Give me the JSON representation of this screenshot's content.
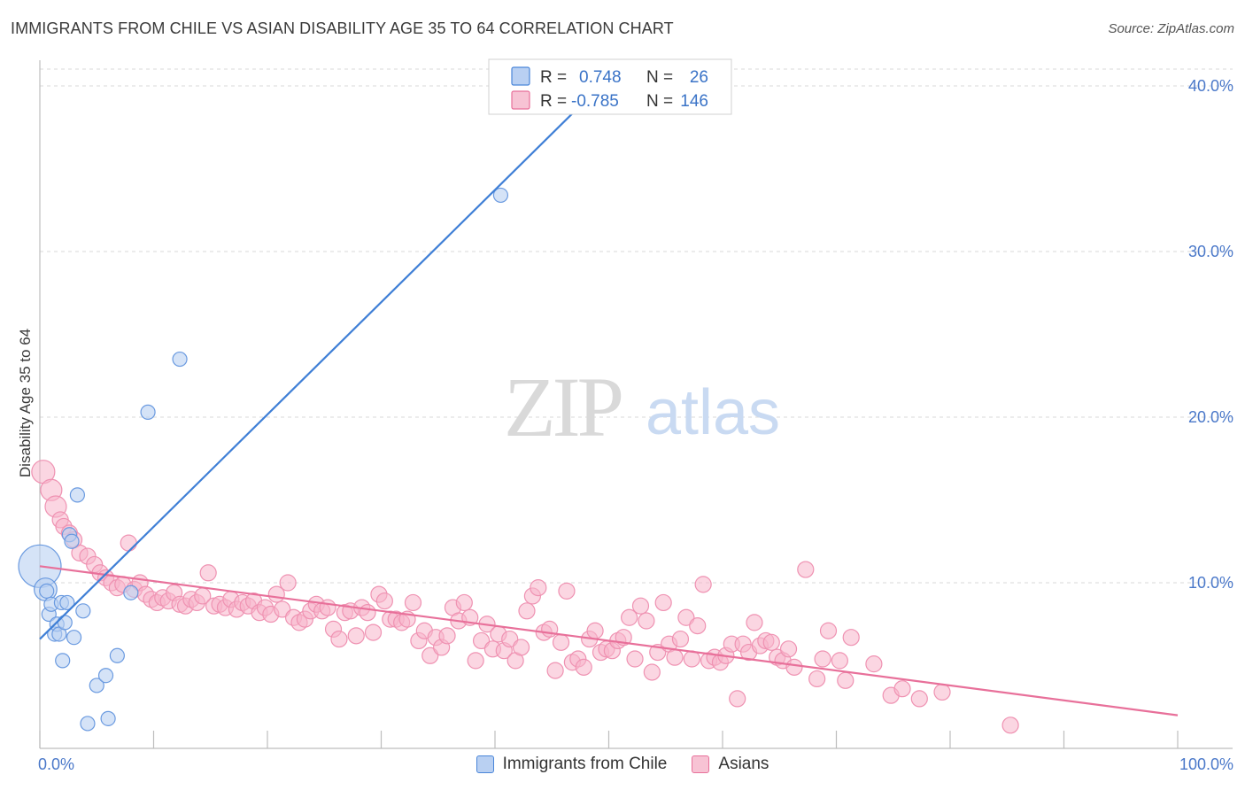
{
  "header": {
    "title": "IMMIGRANTS FROM CHILE VS ASIAN DISABILITY AGE 35 TO 64 CORRELATION CHART",
    "source": "Source: ZipAtlas.com"
  },
  "watermark": {
    "zip": "ZIP",
    "atlas": "atlas"
  },
  "colors": {
    "blue": "#4a86d9",
    "blue_fill": "#b9d0f2",
    "pink": "#e8709a",
    "pink_fill": "#f7c3d4",
    "tick": "#4a78c9"
  },
  "legend": {
    "rows": [
      {
        "r_label": "R =",
        "r_value": "0.748",
        "n_label": "N =",
        "n_value": "26"
      },
      {
        "r_label": "R =",
        "r_value": "-0.785",
        "n_label": "N =",
        "n_value": "146"
      }
    ]
  },
  "bottom_legend": {
    "blue_label": "Immigrants from Chile",
    "pink_label": "Asians"
  },
  "chart_data": {
    "type": "scatter",
    "title": "IMMIGRANTS FROM CHILE VS ASIAN DISABILITY AGE 35 TO 64 CORRELATION CHART",
    "ylabel": "Disability Age 35 to 64",
    "xlabel": "",
    "xlim": [
      0,
      100
    ],
    "ylim": [
      0,
      40
    ],
    "x_tick_labels": [
      "0.0%",
      "100.0%"
    ],
    "y_ticks": [
      10,
      20,
      30,
      40
    ],
    "y_tick_labels": [
      "10.0%",
      "20.0%",
      "30.0%",
      "40.0%"
    ],
    "grid": true,
    "series": [
      {
        "name": "Immigrants from Chile",
        "color": "#4a86d9",
        "r": 0.748,
        "n": 26,
        "trend": [
          [
            0,
            6.6
          ],
          [
            50,
            40.5
          ]
        ],
        "points": [
          [
            0,
            11.0
          ],
          [
            0.5,
            9.6
          ],
          [
            0.6,
            9.5
          ],
          [
            0.8,
            8.1
          ],
          [
            1.0,
            8.7
          ],
          [
            1.3,
            6.9
          ],
          [
            1.5,
            7.5
          ],
          [
            1.7,
            6.9
          ],
          [
            1.9,
            8.8
          ],
          [
            2.0,
            5.3
          ],
          [
            2.2,
            7.6
          ],
          [
            2.4,
            8.8
          ],
          [
            2.6,
            12.9
          ],
          [
            2.8,
            12.5
          ],
          [
            3.0,
            6.7
          ],
          [
            3.3,
            15.3
          ],
          [
            3.8,
            8.3
          ],
          [
            4.2,
            1.5
          ],
          [
            5.0,
            3.8
          ],
          [
            5.8,
            4.4
          ],
          [
            6.0,
            1.8
          ],
          [
            6.8,
            5.6
          ],
          [
            8.0,
            9.4
          ],
          [
            9.5,
            20.3
          ],
          [
            12.3,
            23.5
          ],
          [
            40.5,
            33.4
          ]
        ],
        "sizes": [
          3,
          1.6,
          1,
          1,
          1,
          1,
          1,
          1,
          1,
          1,
          1,
          1,
          1,
          1,
          1,
          1,
          1,
          1,
          1,
          1,
          1,
          1,
          1,
          1,
          1,
          1
        ]
      },
      {
        "name": "Asians",
        "color": "#e8709a",
        "r": -0.785,
        "n": 146,
        "trend": [
          [
            0,
            11.0
          ],
          [
            100,
            2.0
          ]
        ],
        "points": [
          [
            0.3,
            16.7
          ],
          [
            1.0,
            15.6
          ],
          [
            1.4,
            14.6
          ],
          [
            1.8,
            13.8
          ],
          [
            2.1,
            13.4
          ],
          [
            2.6,
            13.0
          ],
          [
            3.0,
            12.6
          ],
          [
            3.5,
            11.8
          ],
          [
            4.2,
            11.6
          ],
          [
            4.8,
            11.1
          ],
          [
            5.3,
            10.6
          ],
          [
            5.8,
            10.3
          ],
          [
            6.3,
            10.0
          ],
          [
            6.8,
            9.7
          ],
          [
            7.3,
            9.9
          ],
          [
            7.8,
            12.4
          ],
          [
            8.3,
            9.6
          ],
          [
            8.8,
            10.0
          ],
          [
            9.3,
            9.3
          ],
          [
            9.8,
            9.0
          ],
          [
            10.3,
            8.8
          ],
          [
            10.8,
            9.1
          ],
          [
            11.3,
            8.9
          ],
          [
            11.8,
            9.4
          ],
          [
            12.3,
            8.7
          ],
          [
            12.8,
            8.6
          ],
          [
            13.3,
            9.0
          ],
          [
            13.8,
            8.8
          ],
          [
            14.3,
            9.2
          ],
          [
            14.8,
            10.6
          ],
          [
            15.3,
            8.6
          ],
          [
            15.8,
            8.7
          ],
          [
            16.3,
            8.5
          ],
          [
            16.8,
            9.0
          ],
          [
            17.3,
            8.4
          ],
          [
            17.8,
            8.8
          ],
          [
            18.3,
            8.6
          ],
          [
            18.8,
            8.9
          ],
          [
            19.3,
            8.2
          ],
          [
            19.8,
            8.5
          ],
          [
            20.3,
            8.1
          ],
          [
            20.8,
            9.3
          ],
          [
            21.3,
            8.4
          ],
          [
            21.8,
            10.0
          ],
          [
            22.3,
            7.9
          ],
          [
            22.8,
            7.6
          ],
          [
            23.3,
            7.8
          ],
          [
            23.8,
            8.3
          ],
          [
            24.3,
            8.7
          ],
          [
            24.8,
            8.3
          ],
          [
            25.3,
            8.5
          ],
          [
            25.8,
            7.2
          ],
          [
            26.3,
            6.6
          ],
          [
            26.8,
            8.2
          ],
          [
            27.3,
            8.3
          ],
          [
            27.8,
            6.8
          ],
          [
            28.3,
            8.5
          ],
          [
            28.8,
            8.2
          ],
          [
            29.3,
            7.0
          ],
          [
            29.8,
            9.3
          ],
          [
            30.3,
            8.9
          ],
          [
            30.8,
            7.8
          ],
          [
            31.3,
            7.8
          ],
          [
            31.8,
            7.6
          ],
          [
            32.3,
            7.8
          ],
          [
            32.8,
            8.8
          ],
          [
            33.3,
            6.5
          ],
          [
            33.8,
            7.1
          ],
          [
            34.3,
            5.6
          ],
          [
            34.8,
            6.7
          ],
          [
            35.3,
            6.1
          ],
          [
            35.8,
            6.8
          ],
          [
            36.3,
            8.5
          ],
          [
            36.8,
            7.7
          ],
          [
            37.3,
            8.8
          ],
          [
            37.8,
            7.9
          ],
          [
            38.3,
            5.3
          ],
          [
            38.8,
            6.5
          ],
          [
            39.3,
            7.5
          ],
          [
            39.8,
            6.0
          ],
          [
            40.3,
            6.9
          ],
          [
            40.8,
            5.9
          ],
          [
            41.3,
            6.6
          ],
          [
            41.8,
            5.3
          ],
          [
            42.3,
            6.1
          ],
          [
            42.8,
            8.3
          ],
          [
            43.3,
            9.2
          ],
          [
            43.8,
            9.7
          ],
          [
            44.3,
            7.0
          ],
          [
            44.8,
            7.2
          ],
          [
            45.3,
            4.7
          ],
          [
            45.8,
            6.4
          ],
          [
            46.3,
            9.5
          ],
          [
            46.8,
            5.2
          ],
          [
            47.3,
            5.4
          ],
          [
            47.8,
            4.9
          ],
          [
            48.3,
            6.6
          ],
          [
            48.8,
            7.1
          ],
          [
            49.3,
            5.8
          ],
          [
            49.8,
            6.0
          ],
          [
            50.3,
            5.9
          ],
          [
            50.8,
            6.5
          ],
          [
            51.3,
            6.7
          ],
          [
            51.8,
            7.9
          ],
          [
            52.3,
            5.4
          ],
          [
            52.8,
            8.6
          ],
          [
            53.3,
            7.7
          ],
          [
            53.8,
            4.6
          ],
          [
            54.3,
            5.8
          ],
          [
            54.8,
            8.8
          ],
          [
            55.3,
            6.3
          ],
          [
            55.8,
            5.5
          ],
          [
            56.3,
            6.6
          ],
          [
            56.8,
            7.9
          ],
          [
            57.3,
            5.4
          ],
          [
            57.8,
            7.4
          ],
          [
            58.3,
            9.9
          ],
          [
            58.8,
            5.3
          ],
          [
            59.3,
            5.5
          ],
          [
            59.8,
            5.2
          ],
          [
            60.3,
            5.6
          ],
          [
            60.8,
            6.3
          ],
          [
            61.3,
            3.0
          ],
          [
            61.8,
            6.3
          ],
          [
            62.3,
            5.8
          ],
          [
            62.8,
            7.6
          ],
          [
            63.3,
            6.2
          ],
          [
            63.8,
            6.5
          ],
          [
            64.3,
            6.4
          ],
          [
            64.8,
            5.5
          ],
          [
            65.3,
            5.3
          ],
          [
            65.8,
            6.0
          ],
          [
            66.3,
            4.9
          ],
          [
            67.3,
            10.8
          ],
          [
            68.3,
            4.2
          ],
          [
            68.8,
            5.4
          ],
          [
            69.3,
            7.1
          ],
          [
            70.3,
            5.3
          ],
          [
            70.8,
            4.1
          ],
          [
            71.3,
            6.7
          ],
          [
            73.3,
            5.1
          ],
          [
            74.8,
            3.2
          ],
          [
            75.8,
            3.6
          ],
          [
            77.3,
            3.0
          ],
          [
            79.3,
            3.4
          ],
          [
            85.3,
            1.4
          ]
        ]
      }
    ]
  }
}
